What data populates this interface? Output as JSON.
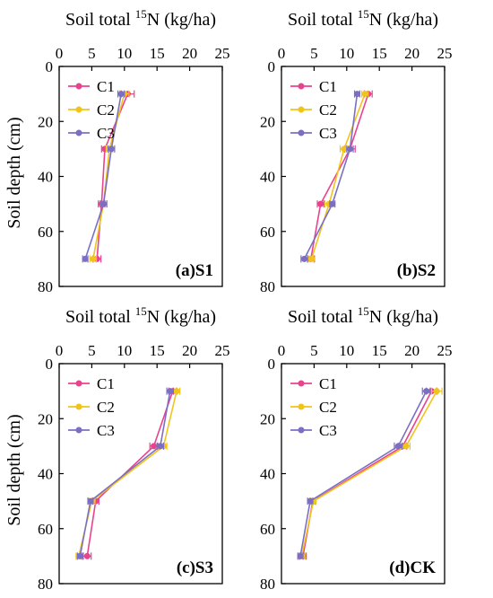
{
  "ylabel": "Soil depth (cm)",
  "colors": {
    "C1": "#e8438f",
    "C2": "#f0c419",
    "C3": "#7b6fc4"
  },
  "chart_data": [
    {
      "type": "line",
      "panel_label": "(a)S1",
      "title": {
        "prefix": "Soil total ",
        "sup": "15",
        "suffix": "N (kg/ha)"
      },
      "ylabel": "Soil depth (cm)",
      "xlim": [
        0,
        25
      ],
      "ylim": [
        0,
        80
      ],
      "y_inverted": true,
      "x_axis_top": true,
      "xticks": [
        0,
        5,
        10,
        15,
        20,
        25
      ],
      "yticks": [
        0,
        20,
        40,
        60,
        80
      ],
      "legend_position": "top-left",
      "y": [
        10,
        30,
        50,
        70
      ],
      "series": [
        {
          "name": "C1",
          "values": [
            10.5,
            7.0,
            6.5,
            5.8
          ],
          "errors": [
            1.0,
            0.5,
            0.5,
            0.6
          ]
        },
        {
          "name": "C2",
          "values": [
            10.0,
            7.7,
            6.8,
            5.2
          ],
          "errors": [
            0.7,
            0.5,
            0.5,
            0.5
          ]
        },
        {
          "name": "C3",
          "values": [
            9.5,
            8.0,
            6.8,
            4.0
          ],
          "errors": [
            0.5,
            0.5,
            0.5,
            0.4
          ]
        }
      ]
    },
    {
      "type": "line",
      "panel_label": "(b)S2",
      "title": {
        "prefix": "Soil total ",
        "sup": "15",
        "suffix": "N (kg/ha)"
      },
      "ylabel": "",
      "xlim": [
        0,
        25
      ],
      "ylim": [
        0,
        80
      ],
      "y_inverted": true,
      "x_axis_top": true,
      "xticks": [
        0,
        5,
        10,
        15,
        20,
        25
      ],
      "yticks": [
        0,
        20,
        40,
        60,
        80
      ],
      "legend_position": "top-left",
      "y": [
        10,
        30,
        50,
        70
      ],
      "series": [
        {
          "name": "C1",
          "values": [
            13.3,
            10.5,
            6.0,
            4.5
          ],
          "errors": [
            0.6,
            0.8,
            0.5,
            0.5
          ]
        },
        {
          "name": "C2",
          "values": [
            12.8,
            9.6,
            7.3,
            4.6
          ],
          "errors": [
            0.5,
            0.6,
            0.6,
            0.5
          ]
        },
        {
          "name": "C3",
          "values": [
            11.6,
            10.5,
            7.8,
            3.5
          ],
          "errors": [
            0.4,
            0.5,
            0.4,
            0.5
          ]
        }
      ]
    },
    {
      "type": "line",
      "panel_label": "(c)S3",
      "title": {
        "prefix": "Soil total ",
        "sup": "15",
        "suffix": "N (kg/ha)"
      },
      "ylabel": "Soil depth (cm)",
      "xlim": [
        0,
        25
      ],
      "ylim": [
        0,
        80
      ],
      "y_inverted": true,
      "x_axis_top": true,
      "xticks": [
        0,
        5,
        10,
        15,
        20,
        25
      ],
      "yticks": [
        0,
        20,
        40,
        60,
        80
      ],
      "legend_position": "top-left",
      "y": [
        10,
        30,
        50,
        70
      ],
      "series": [
        {
          "name": "C1",
          "values": [
            17.4,
            14.5,
            5.6,
            4.3
          ],
          "errors": [
            0.6,
            0.6,
            0.5,
            0.6
          ]
        },
        {
          "name": "C2",
          "values": [
            18.0,
            16.0,
            5.0,
            3.0
          ],
          "errors": [
            0.5,
            0.5,
            0.5,
            0.4
          ]
        },
        {
          "name": "C3",
          "values": [
            17.0,
            15.5,
            4.8,
            3.2
          ],
          "errors": [
            0.5,
            0.5,
            0.4,
            0.4
          ]
        }
      ]
    },
    {
      "type": "line",
      "panel_label": "(d)CK",
      "title": {
        "prefix": "Soil total ",
        "sup": "15",
        "suffix": "N (kg/ha)"
      },
      "ylabel": "",
      "xlim": [
        0,
        25
      ],
      "ylim": [
        0,
        80
      ],
      "y_inverted": true,
      "x_axis_top": true,
      "xticks": [
        0,
        5,
        10,
        15,
        20,
        25
      ],
      "yticks": [
        0,
        20,
        40,
        60,
        80
      ],
      "legend_position": "top-left",
      "y": [
        10,
        30,
        50,
        70
      ],
      "series": [
        {
          "name": "C1",
          "values": [
            23.0,
            18.6,
            4.8,
            3.3
          ],
          "errors": [
            0.8,
            0.6,
            0.4,
            0.5
          ]
        },
        {
          "name": "C2",
          "values": [
            23.8,
            19.1,
            4.9,
            3.1
          ],
          "errors": [
            0.8,
            0.6,
            0.4,
            0.5
          ]
        },
        {
          "name": "C3",
          "values": [
            22.2,
            17.9,
            4.4,
            2.9
          ],
          "errors": [
            0.6,
            0.6,
            0.4,
            0.4
          ]
        }
      ]
    }
  ]
}
